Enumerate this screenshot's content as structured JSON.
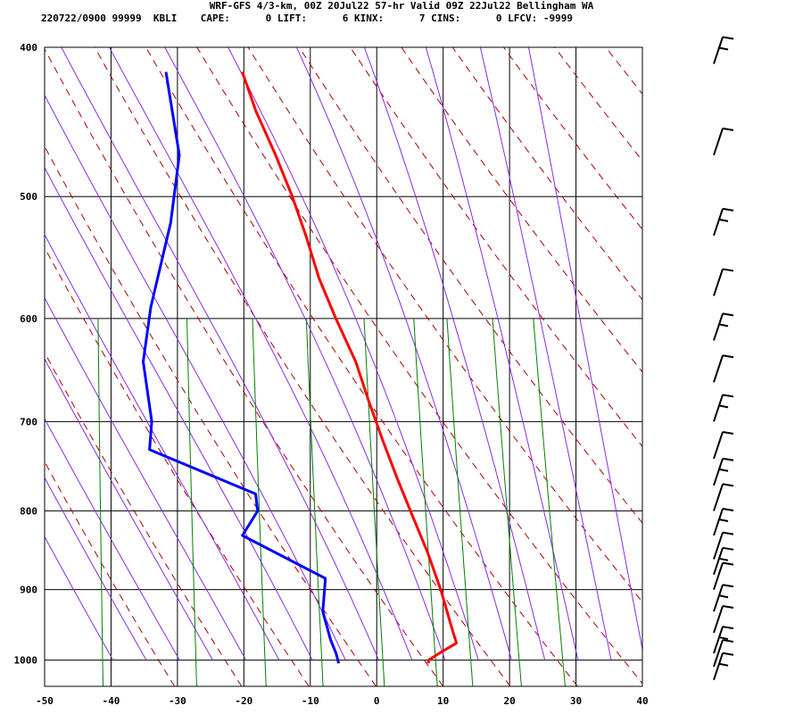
{
  "header": {
    "line1": "WRF-GFS 4/3-km, 00Z 20Jul22 57-hr Valid 09Z 22Jul22 Bellingham WA",
    "line2": "220722/0900 99999  KBLI    CAPE:      0 LIFT:      6 KINX:      7 CINS:      0 LFCV: -9999"
  },
  "chart_data": {
    "type": "line",
    "title": "WRF-GFS 4/3-km, 00Z 20Jul22 57-hr Valid 09Z 22Jul22 Bellingham WA",
    "xlabel": "",
    "ylabel": "",
    "x_ticks": [
      -50,
      -40,
      -30,
      -20,
      -10,
      0,
      10,
      20,
      30,
      40
    ],
    "y_ticks": [
      400,
      500,
      600,
      700,
      800,
      900,
      1000
    ],
    "xlim": [
      -50,
      40
    ],
    "ylim": [
      1040,
      400
    ],
    "y_scale": "log",
    "grid": true,
    "skewed": true,
    "series": [
      {
        "color": "#ff0000",
        "points": [
          [
            -27.5,
            415
          ],
          [
            -25,
            440
          ],
          [
            -21.5,
            470
          ],
          [
            -18.5,
            500
          ],
          [
            -16,
            530
          ],
          [
            -13.5,
            565
          ],
          [
            -10.5,
            600
          ],
          [
            -7,
            640
          ],
          [
            -4.5,
            680
          ],
          [
            -2,
            720
          ],
          [
            0.5,
            760
          ],
          [
            3,
            800
          ],
          [
            6,
            850
          ],
          [
            8.5,
            900
          ],
          [
            10.5,
            950
          ],
          [
            11.5,
            975
          ],
          [
            9,
            990
          ],
          [
            7.5,
            1000
          ],
          [
            7.5,
            1005
          ]
        ]
      },
      {
        "color": "#0000ff",
        "points": [
          [
            -39,
            415
          ],
          [
            -36,
            470
          ],
          [
            -36.5,
            520
          ],
          [
            -38.5,
            590
          ],
          [
            -39,
            640
          ],
          [
            -37,
            700
          ],
          [
            -37,
            730
          ],
          [
            -20.5,
            780
          ],
          [
            -20,
            800
          ],
          [
            -22,
            830
          ],
          [
            -9,
            885
          ],
          [
            -9,
            930
          ],
          [
            -7.5,
            970
          ],
          [
            -6.5,
            990
          ],
          [
            -6,
            1005
          ]
        ]
      }
    ],
    "isotherm_spacing": 10,
    "wind_barbs_side": "right"
  }
}
